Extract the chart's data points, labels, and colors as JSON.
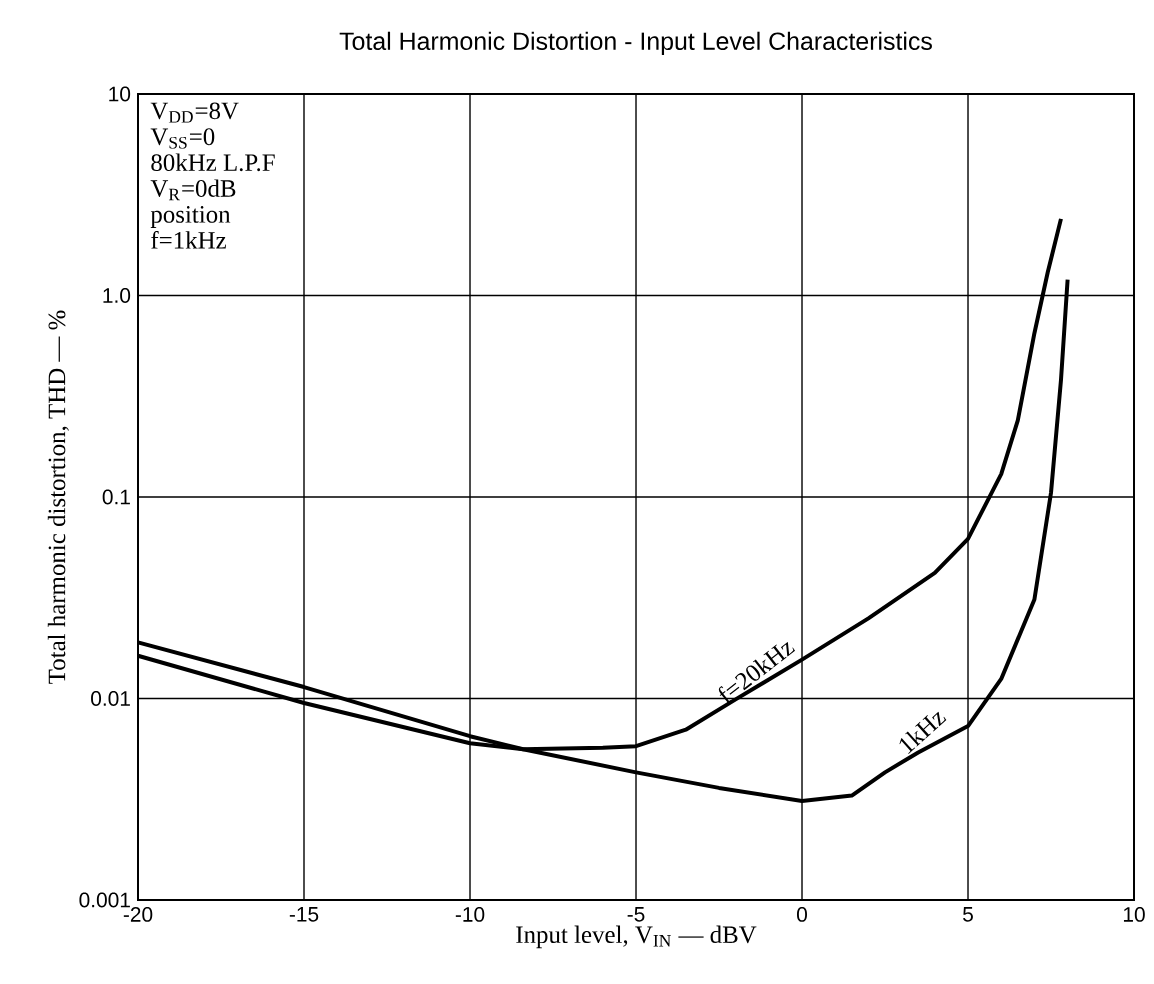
{
  "chart_data": {
    "type": "line",
    "title": "Total Harmonic Distortion - Input Level Characteristics",
    "xlabel": "Input level, V$_{IN}$ — dBV",
    "ylabel": "Total harmonic distortion, THD — %",
    "annotations": [
      "V$_{DD}$=8V",
      "V$_{SS}$=0",
      "80kHz L.P.F",
      "V$_{R}$=0dB",
      "position",
      "f=1kHz"
    ],
    "log": "y",
    "grid": true,
    "marker": "none",
    "line_style": "solid",
    "xlim": [
      -20,
      10
    ],
    "xticks": [
      -20,
      -15,
      -10,
      -5,
      0,
      5,
      10
    ],
    "ylim": [
      0.001,
      10
    ],
    "yticks": [
      0.001,
      0.01,
      0.1,
      {
        "value": 1,
        "label": "1.0"
      },
      10
    ],
    "series": [
      {
        "name": "f=20kHz",
        "color": "#000000",
        "x": [
          -20,
          -15,
          -10,
          -8.4,
          -6,
          -5,
          -3.5,
          -2,
          0,
          2,
          4,
          5,
          6,
          6.5,
          7,
          7.4,
          7.8
        ],
        "values": [
          0.0163,
          0.0095,
          0.006,
          0.0056,
          0.0057,
          0.0058,
          0.007,
          0.0099,
          0.0156,
          0.025,
          0.042,
          0.062,
          0.13,
          0.24,
          0.65,
          1.3,
          2.4
        ]
      },
      {
        "name": "1kHz",
        "color": "#000000",
        "x": [
          -20,
          -15,
          -10,
          -8.4,
          -5,
          -2.5,
          0,
          1.5,
          2.5,
          3.5,
          5,
          6,
          7,
          7.5,
          7.8,
          8
        ],
        "values": [
          0.019,
          0.0114,
          0.0065,
          0.0056,
          0.0043,
          0.0036,
          0.0031,
          0.0033,
          0.0043,
          0.0054,
          0.0073,
          0.0125,
          0.031,
          0.105,
          0.38,
          1.2
        ]
      }
    ]
  }
}
